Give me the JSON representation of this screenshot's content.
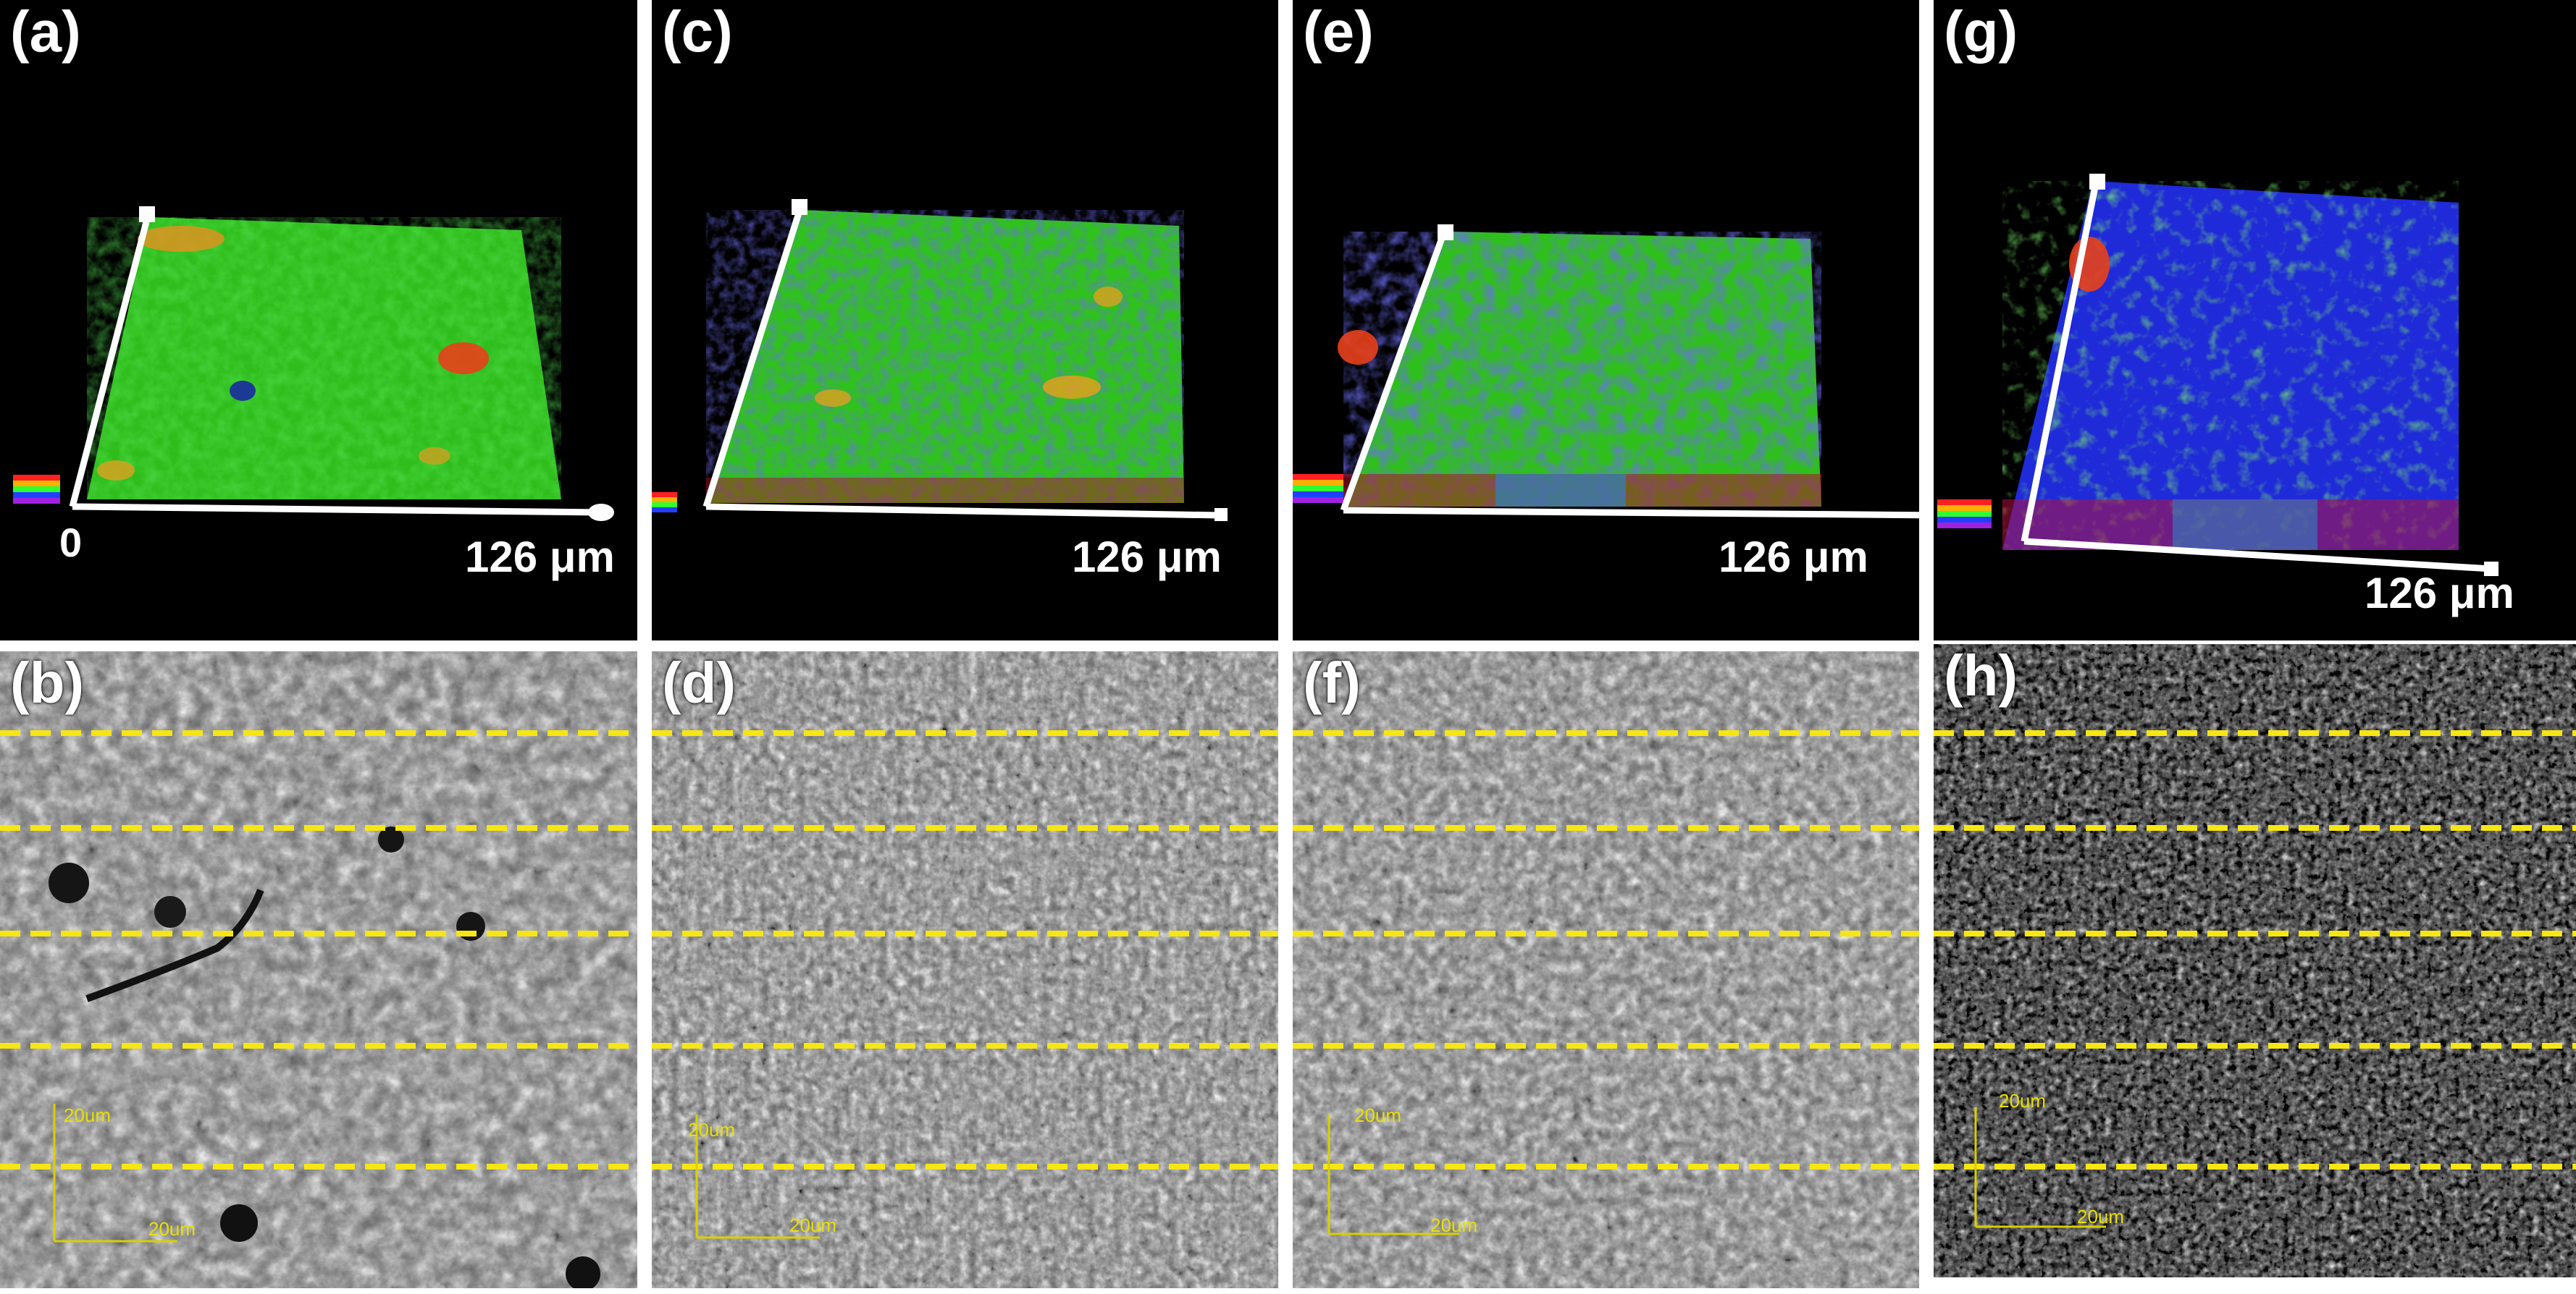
{
  "figure": {
    "top_panels": [
      {
        "id": "a",
        "label": "(a)",
        "dimension": "126 μm",
        "origin": "0",
        "surface": "green"
      },
      {
        "id": "c",
        "label": "(c)",
        "dimension": "126 μm",
        "origin": "",
        "surface": "green-blue"
      },
      {
        "id": "e",
        "label": "(e)",
        "dimension": "126 μm",
        "origin": "",
        "surface": "green-blue"
      },
      {
        "id": "g",
        "label": "(g)",
        "dimension": "126 μm",
        "origin": "",
        "surface": "blue"
      }
    ],
    "bottom_panels": [
      {
        "id": "b",
        "label": "(b)",
        "scale_y": "20um",
        "scale_x": "20um"
      },
      {
        "id": "d",
        "label": "(d)",
        "scale_y": "20um",
        "scale_x": "20um"
      },
      {
        "id": "f",
        "label": "(f)",
        "scale_y": "20um",
        "scale_x": "20um"
      },
      {
        "id": "h",
        "label": "(h)",
        "scale_y": "20um",
        "scale_x": "20um"
      }
    ],
    "colors": {
      "background": "#000000",
      "guide_line": "#f5e614",
      "scale_bar": "#d8d000",
      "surface_green": "#33cc22",
      "surface_blue": "#2233dd",
      "peak_red": "#e8401a"
    }
  }
}
